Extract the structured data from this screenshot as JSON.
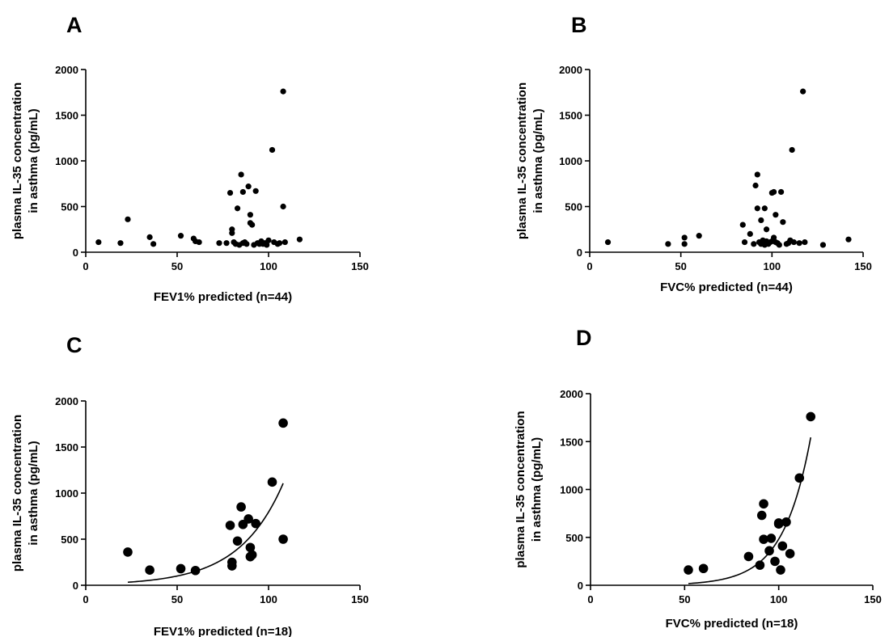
{
  "chart_data": [
    {
      "panel": "A",
      "type": "scatter",
      "xlabel": "FEV1% predicted (n=44)",
      "ylabel_lines": [
        "plasma IL-35 concentration",
        "in asthma (pg/mL)"
      ],
      "xlim": [
        0,
        150
      ],
      "ylim": [
        0,
        2000
      ],
      "xticks": [
        0,
        50,
        100,
        150
      ],
      "yticks": [
        0,
        500,
        1000,
        1500,
        2000
      ],
      "marker": "small",
      "fit": null,
      "points": [
        [
          7,
          110
        ],
        [
          19,
          100
        ],
        [
          23,
          360
        ],
        [
          35,
          165
        ],
        [
          37,
          90
        ],
        [
          52,
          180
        ],
        [
          59,
          150
        ],
        [
          60,
          120
        ],
        [
          62,
          110
        ],
        [
          73,
          100
        ],
        [
          77,
          100
        ],
        [
          79,
          650
        ],
        [
          80,
          250
        ],
        [
          80,
          210
        ],
        [
          81,
          110
        ],
        [
          83,
          480
        ],
        [
          84,
          80
        ],
        [
          85,
          850
        ],
        [
          86,
          660
        ],
        [
          86,
          100
        ],
        [
          88,
          90
        ],
        [
          89,
          720
        ],
        [
          90,
          410
        ],
        [
          90,
          320
        ],
        [
          91,
          300
        ],
        [
          92,
          80
        ],
        [
          93,
          670
        ],
        [
          94,
          100
        ],
        [
          96,
          120
        ],
        [
          97,
          90
        ],
        [
          98,
          100
        ],
        [
          99,
          80
        ],
        [
          100,
          130
        ],
        [
          102,
          1120
        ],
        [
          103,
          110
        ],
        [
          105,
          90
        ],
        [
          106,
          100
        ],
        [
          108,
          1760
        ],
        [
          108,
          500
        ],
        [
          109,
          110
        ],
        [
          117,
          140
        ],
        [
          82,
          90
        ],
        [
          87,
          110
        ],
        [
          95,
          90
        ]
      ]
    },
    {
      "panel": "B",
      "type": "scatter",
      "xlabel": "FVC% predicted (n=44)",
      "ylabel_lines": [
        "plasma IL-35 concentration",
        "in asthma (pg/mL)"
      ],
      "xlim": [
        0,
        150
      ],
      "ylim": [
        0,
        2000
      ],
      "xticks": [
        0,
        50,
        100,
        150
      ],
      "yticks": [
        0,
        500,
        1000,
        1500,
        2000
      ],
      "marker": "small",
      "fit": null,
      "points": [
        [
          10,
          110
        ],
        [
          43,
          90
        ],
        [
          52,
          90
        ],
        [
          52,
          160
        ],
        [
          60,
          180
        ],
        [
          84,
          300
        ],
        [
          85,
          110
        ],
        [
          88,
          200
        ],
        [
          90,
          90
        ],
        [
          91,
          730
        ],
        [
          92,
          850
        ],
        [
          92,
          480
        ],
        [
          93,
          110
        ],
        [
          94,
          350
        ],
        [
          95,
          100
        ],
        [
          96,
          480
        ],
        [
          96,
          80
        ],
        [
          97,
          250
        ],
        [
          97,
          120
        ],
        [
          98,
          90
        ],
        [
          99,
          110
        ],
        [
          100,
          650
        ],
        [
          101,
          660
        ],
        [
          101,
          160
        ],
        [
          102,
          410
        ],
        [
          103,
          100
        ],
        [
          104,
          80
        ],
        [
          105,
          660
        ],
        [
          106,
          330
        ],
        [
          108,
          90
        ],
        [
          109,
          100
        ],
        [
          110,
          130
        ],
        [
          111,
          1120
        ],
        [
          112,
          110
        ],
        [
          115,
          100
        ],
        [
          117,
          1760
        ],
        [
          118,
          110
        ],
        [
          128,
          80
        ],
        [
          142,
          140
        ],
        [
          94,
          90
        ],
        [
          98,
          100
        ],
        [
          100,
          120
        ],
        [
          102,
          110
        ],
        [
          95,
          130
        ]
      ]
    },
    {
      "panel": "C",
      "type": "scatter",
      "xlabel": "FEV1% predicted (n=18)",
      "ylabel_lines": [
        "plasma IL-35 concentration",
        "in asthma (pg/mL)"
      ],
      "xlim": [
        0,
        150
      ],
      "ylim": [
        0,
        2000
      ],
      "xticks": [
        0,
        50,
        100,
        150
      ],
      "yticks": [
        0,
        500,
        1000,
        1500,
        2000
      ],
      "marker": "large",
      "fit": {
        "type": "exponential",
        "a": 12.65,
        "b": 0.0414,
        "x_range": [
          23,
          108
        ]
      },
      "points": [
        [
          23,
          360
        ],
        [
          35,
          165
        ],
        [
          52,
          180
        ],
        [
          60,
          160
        ],
        [
          79,
          650
        ],
        [
          80,
          250
        ],
        [
          80,
          210
        ],
        [
          83,
          480
        ],
        [
          85,
          850
        ],
        [
          86,
          660
        ],
        [
          89,
          720
        ],
        [
          90,
          410
        ],
        [
          90,
          310
        ],
        [
          91,
          330
        ],
        [
          93,
          670
        ],
        [
          102,
          1120
        ],
        [
          108,
          1760
        ],
        [
          108,
          500
        ]
      ]
    },
    {
      "panel": "D",
      "type": "scatter",
      "xlabel": "FVC% predicted (n=18)",
      "ylabel_lines": [
        "plasma IL-35 concentration",
        "in asthma (pg/mL)"
      ],
      "xlim": [
        0,
        150
      ],
      "ylim": [
        0,
        2000
      ],
      "xticks": [
        0,
        50,
        100,
        150
      ],
      "yticks": [
        0,
        500,
        1000,
        1500,
        2000
      ],
      "marker": "large",
      "fit": {
        "type": "exponential",
        "a": 0.5105,
        "b": 0.0685,
        "x_range": [
          52,
          117
        ]
      },
      "points": [
        [
          52,
          160
        ],
        [
          60,
          175
        ],
        [
          84,
          300
        ],
        [
          90,
          210
        ],
        [
          91,
          730
        ],
        [
          92,
          850
        ],
        [
          92,
          480
        ],
        [
          95,
          360
        ],
        [
          96,
          490
        ],
        [
          98,
          250
        ],
        [
          100,
          650
        ],
        [
          101,
          160
        ],
        [
          102,
          410
        ],
        [
          104,
          660
        ],
        [
          106,
          330
        ],
        [
          111,
          1120
        ],
        [
          117,
          1760
        ],
        [
          100,
          640
        ]
      ]
    }
  ]
}
